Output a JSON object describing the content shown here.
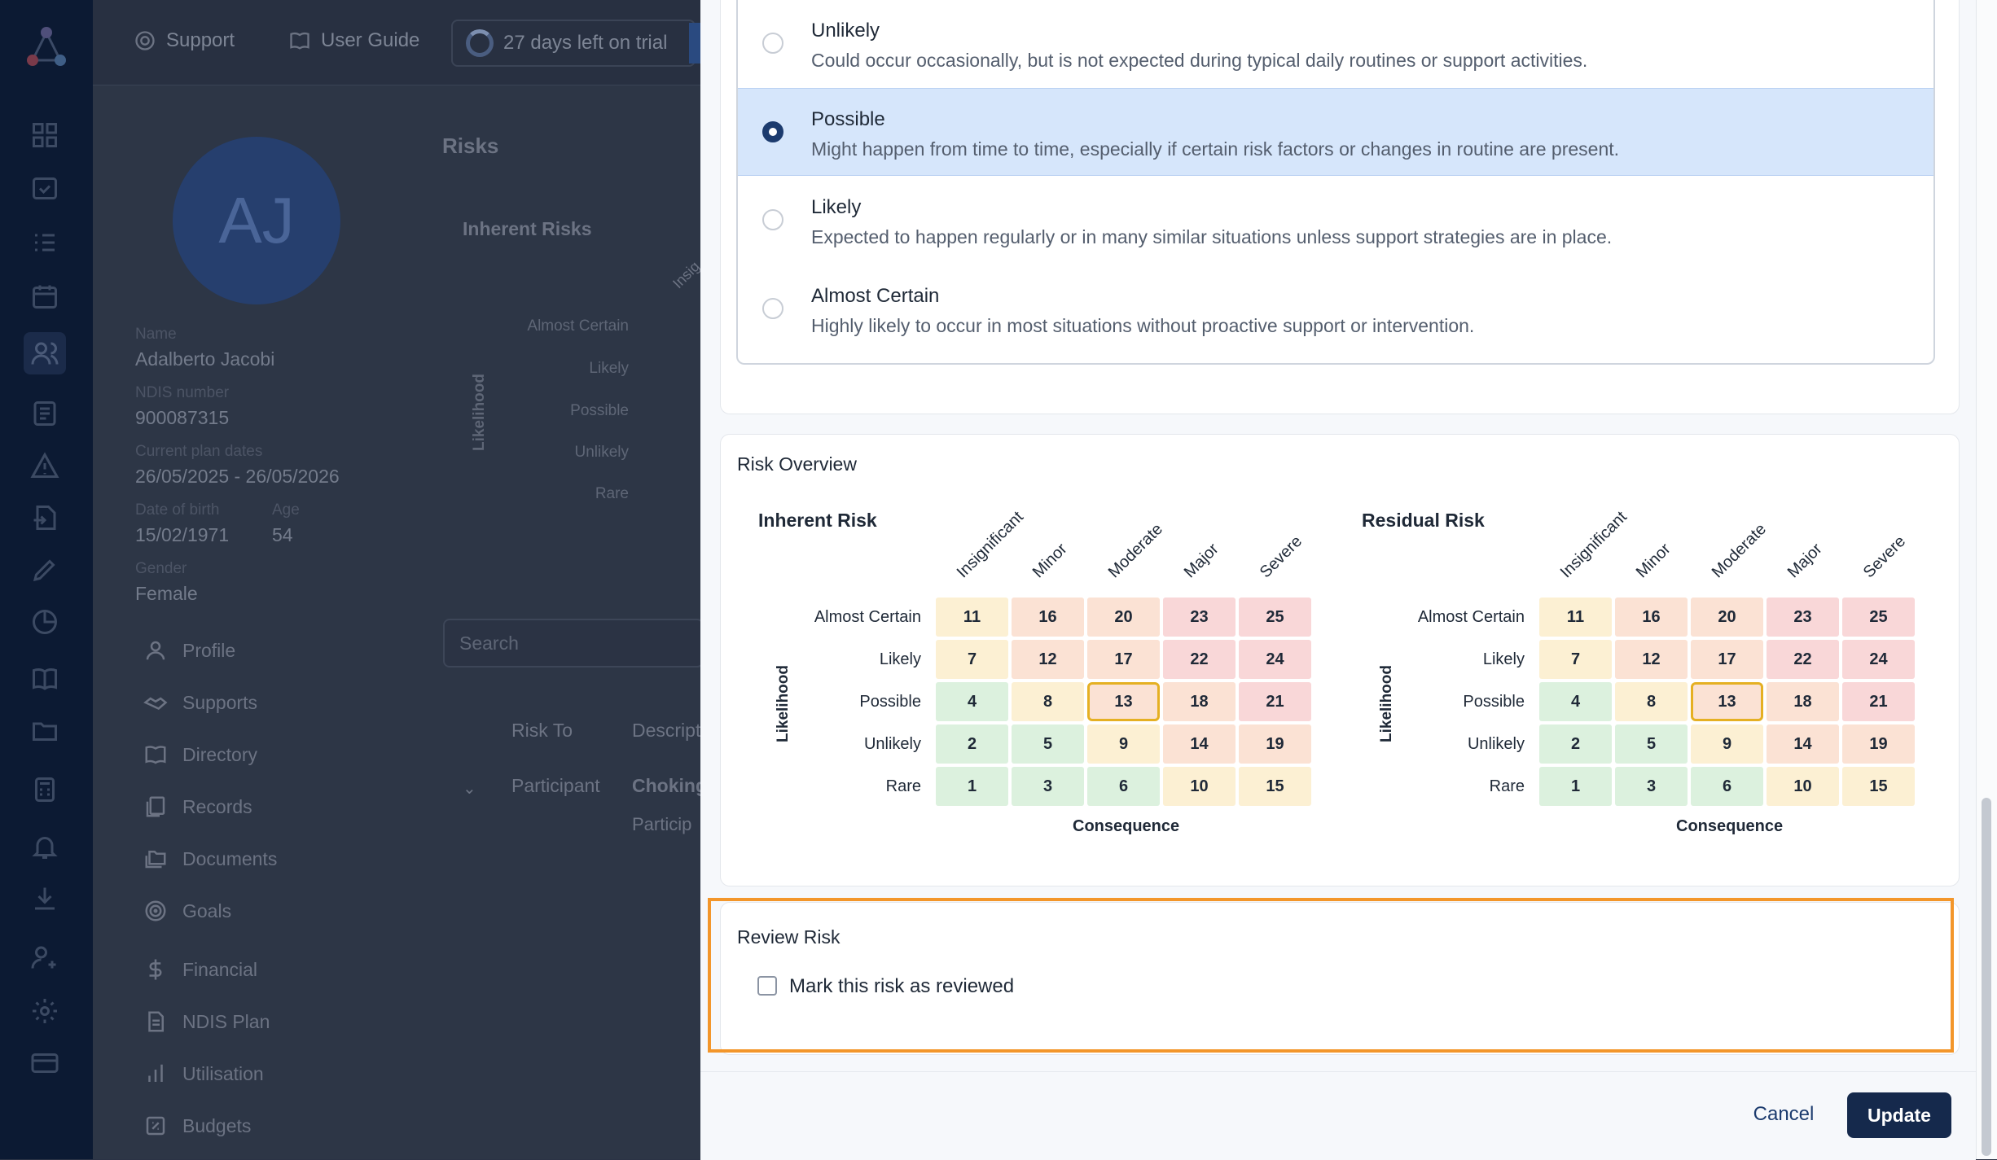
{
  "topbar": {
    "support": "Support",
    "user_guide": "User Guide",
    "trial": "27 days left on trial"
  },
  "profile": {
    "initials": "AJ",
    "name_label": "Name",
    "name": "Adalberto Jacobi",
    "ndis_label": "NDIS number",
    "ndis": "900087315",
    "plan_label": "Current plan dates",
    "plan": "26/05/2025 - 26/05/2026",
    "dob_label": "Date of birth",
    "dob": "15/02/1971",
    "age_label": "Age",
    "age": "54",
    "gender_label": "Gender",
    "gender": "Female"
  },
  "nav": [
    "Profile",
    "Supports",
    "Directory",
    "Records",
    "Documents",
    "Goals",
    "Financial",
    "NDIS Plan",
    "Utilisation",
    "Budgets"
  ],
  "risks_bg": {
    "title": "Risks",
    "inherent": "Inherent Risks",
    "ins": "Insig",
    "rows": [
      "Almost Certain",
      "Likely",
      "Possible",
      "Unlikely",
      "Rare"
    ],
    "likelihood": "Likelihood",
    "search": "Search",
    "col_risk_to": "Risk To",
    "col_desc": "Descript",
    "row_risk_to": "Participant",
    "row_desc": "Choking",
    "row_desc2": "Particip"
  },
  "likelihood_options": [
    {
      "title": "Unlikely",
      "desc": "Could occur occasionally, but is not expected during typical daily routines or support activities.",
      "selected": false
    },
    {
      "title": "Possible",
      "desc": "Might happen from time to time, especially if certain risk factors or changes in routine are present.",
      "selected": true
    },
    {
      "title": "Likely",
      "desc": "Expected to happen regularly or in many similar situations unless support strategies are in place.",
      "selected": false
    },
    {
      "title": "Almost Certain",
      "desc": "Highly likely to occur in most situations without proactive support or intervention.",
      "selected": false
    }
  ],
  "overview": {
    "title": "Risk Overview",
    "consequence_label": "Consequence",
    "likelihood_label": "Likelihood",
    "columns": [
      "Insignificant",
      "Minor",
      "Moderate",
      "Major",
      "Severe"
    ],
    "rows": [
      "Almost Certain",
      "Likely",
      "Possible",
      "Unlikely",
      "Rare"
    ],
    "values": [
      [
        11,
        16,
        20,
        23,
        25
      ],
      [
        7,
        12,
        17,
        22,
        24
      ],
      [
        4,
        8,
        13,
        18,
        21
      ],
      [
        2,
        5,
        9,
        14,
        19
      ],
      [
        1,
        3,
        6,
        10,
        15
      ]
    ],
    "levels": [
      [
        "m",
        "h",
        "h",
        "e",
        "e"
      ],
      [
        "m",
        "h",
        "h",
        "e",
        "e"
      ],
      [
        "l",
        "m",
        "h",
        "h",
        "e"
      ],
      [
        "l",
        "l",
        "m",
        "h",
        "h"
      ],
      [
        "l",
        "l",
        "l",
        "m",
        "m"
      ]
    ],
    "level_colors": {
      "l": "#dcf1de",
      "m": "#fcf0d3",
      "h": "#fbe2d4",
      "e": "#f9d7d8"
    },
    "highlight_color": "#e5b023",
    "matrices": [
      {
        "title": "Inherent Risk",
        "selected": [
          2,
          2
        ]
      },
      {
        "title": "Residual Risk",
        "selected": [
          2,
          2
        ]
      }
    ]
  },
  "review": {
    "title": "Review Risk",
    "checkbox_label": "Mark this risk as reviewed",
    "checked": false,
    "highlight_color": "#f3962a"
  },
  "footer": {
    "cancel": "Cancel",
    "update": "Update"
  }
}
